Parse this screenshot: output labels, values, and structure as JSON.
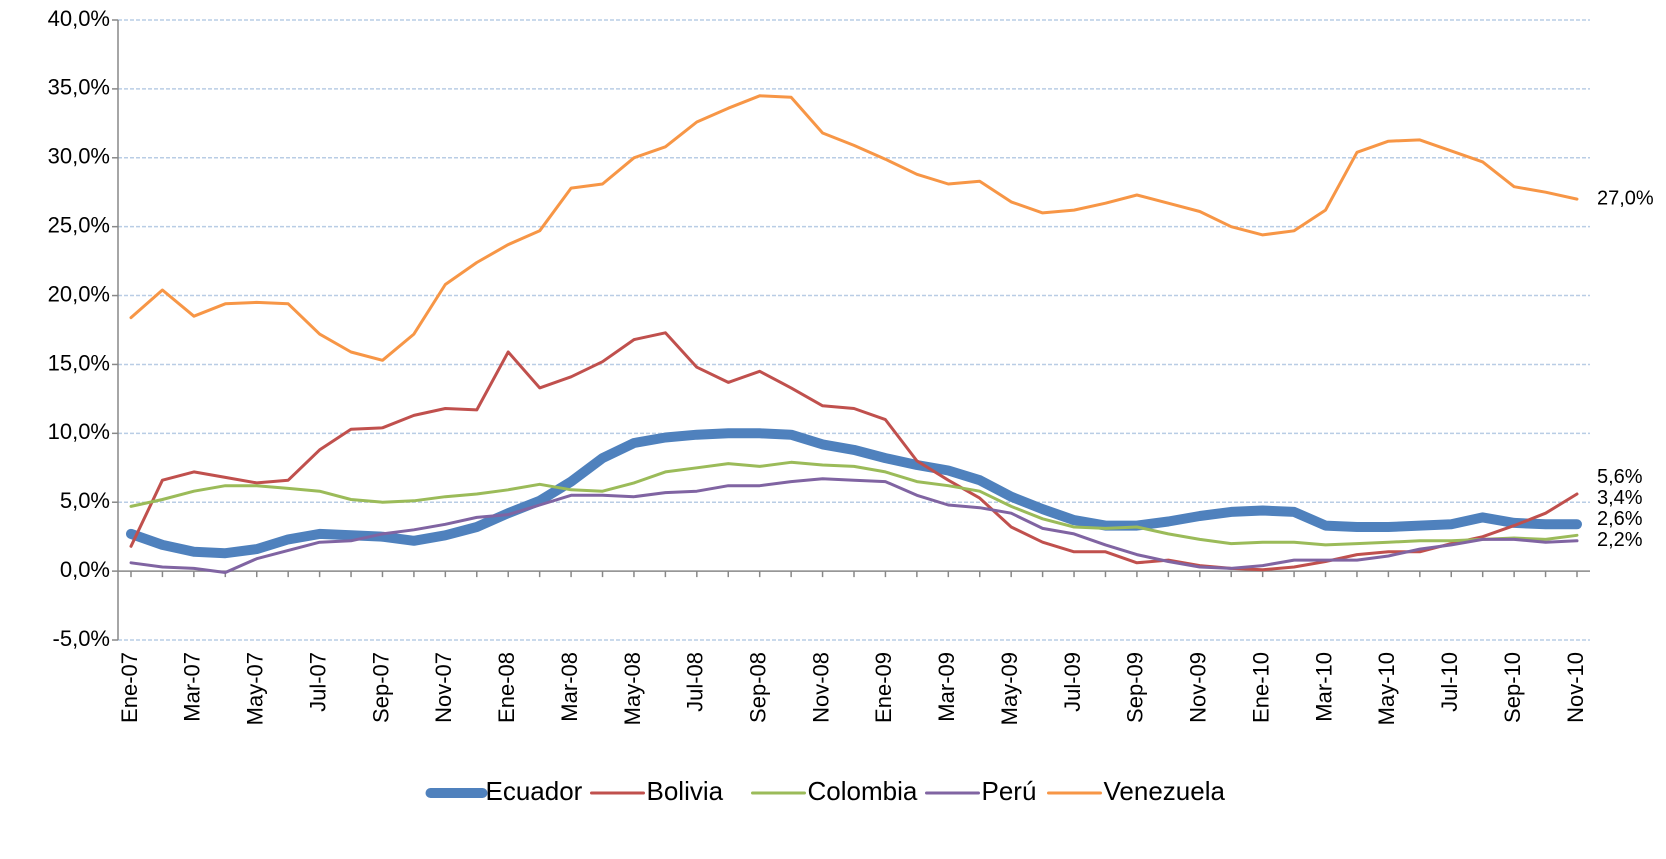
{
  "chart_data": {
    "type": "line",
    "categories": [
      "Ene-07",
      null,
      "Mar-07",
      null,
      "May-07",
      null,
      "Jul-07",
      null,
      "Sep-07",
      null,
      "Nov-07",
      null,
      "Ene-08",
      null,
      "Mar-08",
      null,
      "May-08",
      null,
      "Jul-08",
      null,
      "Sep-08",
      null,
      "Nov-08",
      null,
      "Ene-09",
      null,
      "Mar-09",
      null,
      "May-09",
      null,
      "Jul-09",
      null,
      "Sep-09",
      null,
      "Nov-09",
      null,
      "Ene-10",
      null,
      "Mar-10",
      null,
      "May-10",
      null,
      "Jul-10",
      null,
      "Sep-10",
      null,
      "Nov-10"
    ],
    "series": [
      {
        "name": "Ecuador",
        "color": "#4f81bd",
        "width": 10,
        "values": [
          2.7,
          1.9,
          1.4,
          1.3,
          1.6,
          2.3,
          2.7,
          2.6,
          2.5,
          2.2,
          2.6,
          3.2,
          4.2,
          5.1,
          6.5,
          8.2,
          9.3,
          9.7,
          9.9,
          10.0,
          10.0,
          9.9,
          9.2,
          8.8,
          8.2,
          7.7,
          7.3,
          6.6,
          5.4,
          4.5,
          3.7,
          3.3,
          3.3,
          3.6,
          4.0,
          4.3,
          4.4,
          4.3,
          3.3,
          3.2,
          3.2,
          3.3,
          3.4,
          3.9,
          3.5,
          3.4,
          3.4
        ],
        "value_labels": [
          null,
          null,
          null,
          null,
          null,
          null,
          null,
          null,
          null,
          null,
          null,
          null,
          null,
          null,
          null,
          null,
          null,
          null,
          null,
          null,
          null,
          null,
          null,
          null,
          null,
          null,
          null,
          null,
          null,
          null,
          null,
          null,
          null,
          null,
          null,
          null,
          null,
          null,
          null,
          null,
          null,
          null,
          null,
          null,
          null,
          null,
          "3,4%"
        ]
      },
      {
        "name": "Bolivia",
        "color": "#c0504d",
        "width": 3,
        "values": [
          1.8,
          6.6,
          7.2,
          6.8,
          6.4,
          6.6,
          8.8,
          10.3,
          10.4,
          11.3,
          11.8,
          11.7,
          15.9,
          13.3,
          14.1,
          15.2,
          16.8,
          17.3,
          14.8,
          13.7,
          14.5,
          13.3,
          12.0,
          11.8,
          11.0,
          8.0,
          6.6,
          5.3,
          3.2,
          2.1,
          1.4,
          1.4,
          0.6,
          0.8,
          0.4,
          0.2,
          0.1,
          0.3,
          0.7,
          1.2,
          1.4,
          1.4,
          2.0,
          2.5,
          3.3,
          4.2,
          5.6
        ],
        "value_labels": [
          null,
          null,
          null,
          null,
          null,
          null,
          null,
          null,
          null,
          null,
          null,
          null,
          null,
          null,
          null,
          null,
          null,
          null,
          null,
          null,
          null,
          null,
          null,
          null,
          null,
          null,
          null,
          null,
          null,
          null,
          null,
          null,
          null,
          null,
          null,
          null,
          null,
          null,
          null,
          null,
          null,
          null,
          null,
          null,
          null,
          null,
          "5,6%"
        ]
      },
      {
        "name": "Colombia",
        "color": "#9bbb59",
        "width": 3,
        "values": [
          4.7,
          5.2,
          5.8,
          6.2,
          6.2,
          6.0,
          5.8,
          5.2,
          5.0,
          5.1,
          5.4,
          5.6,
          5.9,
          6.3,
          5.9,
          5.8,
          6.4,
          7.2,
          7.5,
          7.8,
          7.6,
          7.9,
          7.7,
          7.6,
          7.2,
          6.5,
          6.2,
          5.8,
          4.7,
          3.8,
          3.2,
          3.1,
          3.2,
          2.7,
          2.3,
          2.0,
          2.1,
          2.1,
          1.9,
          2.0,
          2.1,
          2.2,
          2.2,
          2.3,
          2.4,
          2.3,
          2.6
        ],
        "value_labels": [
          null,
          null,
          null,
          null,
          null,
          null,
          null,
          null,
          null,
          null,
          null,
          null,
          null,
          null,
          null,
          null,
          null,
          null,
          null,
          null,
          null,
          null,
          null,
          null,
          null,
          null,
          null,
          null,
          null,
          null,
          null,
          null,
          null,
          null,
          null,
          null,
          null,
          null,
          null,
          null,
          null,
          null,
          null,
          null,
          null,
          null,
          "2,6%"
        ]
      },
      {
        "name": "Perú",
        "color": "#8064a2",
        "width": 3,
        "values": [
          0.6,
          0.3,
          0.2,
          -0.1,
          0.9,
          1.5,
          2.1,
          2.2,
          2.7,
          3.0,
          3.4,
          3.9,
          4.1,
          4.8,
          5.5,
          5.5,
          5.4,
          5.7,
          5.8,
          6.2,
          6.2,
          6.5,
          6.7,
          6.6,
          6.5,
          5.5,
          4.8,
          4.6,
          4.2,
          3.1,
          2.7,
          1.9,
          1.2,
          0.7,
          0.3,
          0.2,
          0.4,
          0.8,
          0.8,
          0.8,
          1.1,
          1.6,
          1.9,
          2.3,
          2.3,
          2.1,
          2.2
        ],
        "value_labels": [
          null,
          null,
          null,
          null,
          null,
          null,
          null,
          null,
          null,
          null,
          null,
          null,
          null,
          null,
          null,
          null,
          null,
          null,
          null,
          null,
          null,
          null,
          null,
          null,
          null,
          null,
          null,
          null,
          null,
          null,
          null,
          null,
          null,
          null,
          null,
          null,
          null,
          null,
          null,
          null,
          null,
          null,
          null,
          null,
          null,
          null,
          "2,2%"
        ]
      },
      {
        "name": "Venezuela",
        "color": "#f79646",
        "width": 3,
        "values": [
          18.4,
          20.4,
          18.5,
          19.4,
          19.5,
          19.4,
          17.2,
          15.9,
          15.3,
          17.2,
          20.8,
          22.4,
          23.7,
          24.7,
          27.8,
          28.1,
          30.0,
          30.8,
          32.6,
          33.6,
          34.5,
          34.4,
          31.8,
          30.9,
          29.9,
          28.8,
          28.1,
          28.3,
          26.8,
          26.0,
          26.2,
          26.7,
          27.3,
          26.7,
          26.1,
          25.0,
          24.4,
          24.7,
          26.2,
          30.4,
          31.2,
          31.3,
          30.5,
          29.7,
          27.9,
          27.5,
          27.0
        ],
        "value_labels": [
          null,
          null,
          null,
          null,
          null,
          null,
          null,
          null,
          null,
          null,
          null,
          null,
          null,
          null,
          null,
          null,
          null,
          null,
          null,
          null,
          null,
          null,
          null,
          null,
          null,
          null,
          null,
          null,
          null,
          null,
          null,
          null,
          null,
          null,
          null,
          null,
          null,
          null,
          null,
          null,
          null,
          null,
          null,
          null,
          null,
          null,
          "27,0%"
        ]
      }
    ],
    "ylim": [
      -5,
      40
    ],
    "yticks": [
      {
        "value": -5,
        "label": "-5,0%"
      },
      {
        "value": 0,
        "label": "0,0%"
      },
      {
        "value": 5,
        "label": "5,0%"
      },
      {
        "value": 10,
        "label": "10,0%"
      },
      {
        "value": 15,
        "label": "15,0%"
      },
      {
        "value": 20,
        "label": "20,0%"
      },
      {
        "value": 25,
        "label": "25,0%"
      },
      {
        "value": 30,
        "label": "30,0%"
      },
      {
        "value": 35,
        "label": "35,0%"
      },
      {
        "value": 40,
        "label": "40,0%"
      }
    ],
    "grid": true,
    "legend": "bottom"
  }
}
